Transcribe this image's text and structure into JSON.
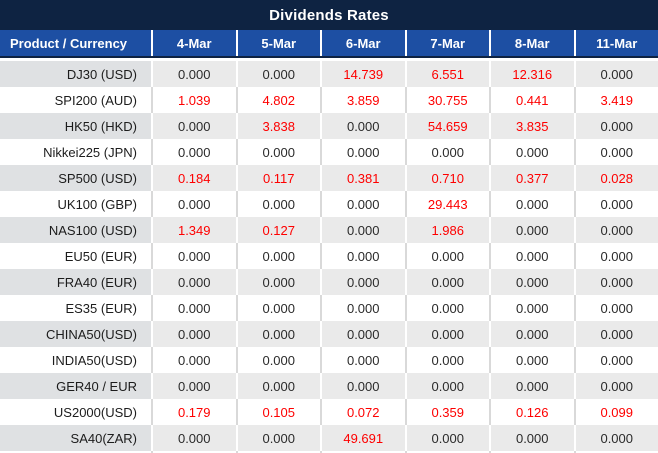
{
  "title": "Dividends Rates",
  "colors": {
    "title_bar_navy": "#0e2342",
    "header_blue": "#1d4fa3",
    "row_alt_gray": "#eaeaea",
    "product_alt_gray": "#dfe1e3",
    "nonzero_red": "#fe0000",
    "zero_text": "#2b2b2b"
  },
  "chart_data": {
    "type": "table",
    "title": "Dividends Rates",
    "product_header": "Product / Currency",
    "columns": [
      "4-Mar",
      "5-Mar",
      "6-Mar",
      "7-Mar",
      "8-Mar",
      "11-Mar"
    ],
    "zero_value": "0.000",
    "rows": [
      {
        "product": "DJ30 (USD)",
        "values": [
          "0.000",
          "0.000",
          "14.739",
          "6.551",
          "12.316",
          "0.000"
        ]
      },
      {
        "product": "SPI200 (AUD)",
        "values": [
          "1.039",
          "4.802",
          "3.859",
          "30.755",
          "0.441",
          "3.419"
        ]
      },
      {
        "product": "HK50 (HKD)",
        "values": [
          "0.000",
          "3.838",
          "0.000",
          "54.659",
          "3.835",
          "0.000"
        ]
      },
      {
        "product": "Nikkei225 (JPN)",
        "values": [
          "0.000",
          "0.000",
          "0.000",
          "0.000",
          "0.000",
          "0.000"
        ]
      },
      {
        "product": "SP500 (USD)",
        "values": [
          "0.184",
          "0.117",
          "0.381",
          "0.710",
          "0.377",
          "0.028"
        ]
      },
      {
        "product": "UK100 (GBP)",
        "values": [
          "0.000",
          "0.000",
          "0.000",
          "29.443",
          "0.000",
          "0.000"
        ]
      },
      {
        "product": "NAS100 (USD)",
        "values": [
          "1.349",
          "0.127",
          "0.000",
          "1.986",
          "0.000",
          "0.000"
        ]
      },
      {
        "product": "EU50 (EUR)",
        "values": [
          "0.000",
          "0.000",
          "0.000",
          "0.000",
          "0.000",
          "0.000"
        ]
      },
      {
        "product": "FRA40 (EUR)",
        "values": [
          "0.000",
          "0.000",
          "0.000",
          "0.000",
          "0.000",
          "0.000"
        ]
      },
      {
        "product": "ES35 (EUR)",
        "values": [
          "0.000",
          "0.000",
          "0.000",
          "0.000",
          "0.000",
          "0.000"
        ]
      },
      {
        "product": "CHINA50(USD)",
        "values": [
          "0.000",
          "0.000",
          "0.000",
          "0.000",
          "0.000",
          "0.000"
        ]
      },
      {
        "product": "INDIA50(USD)",
        "values": [
          "0.000",
          "0.000",
          "0.000",
          "0.000",
          "0.000",
          "0.000"
        ]
      },
      {
        "product": "GER40 / EUR",
        "values": [
          "0.000",
          "0.000",
          "0.000",
          "0.000",
          "0.000",
          "0.000"
        ]
      },
      {
        "product": "US2000(USD)",
        "values": [
          "0.179",
          "0.105",
          "0.072",
          "0.359",
          "0.126",
          "0.099"
        ]
      },
      {
        "product": "SA40(ZAR)",
        "values": [
          "0.000",
          "0.000",
          "49.691",
          "0.000",
          "0.000",
          "0.000"
        ]
      }
    ]
  }
}
